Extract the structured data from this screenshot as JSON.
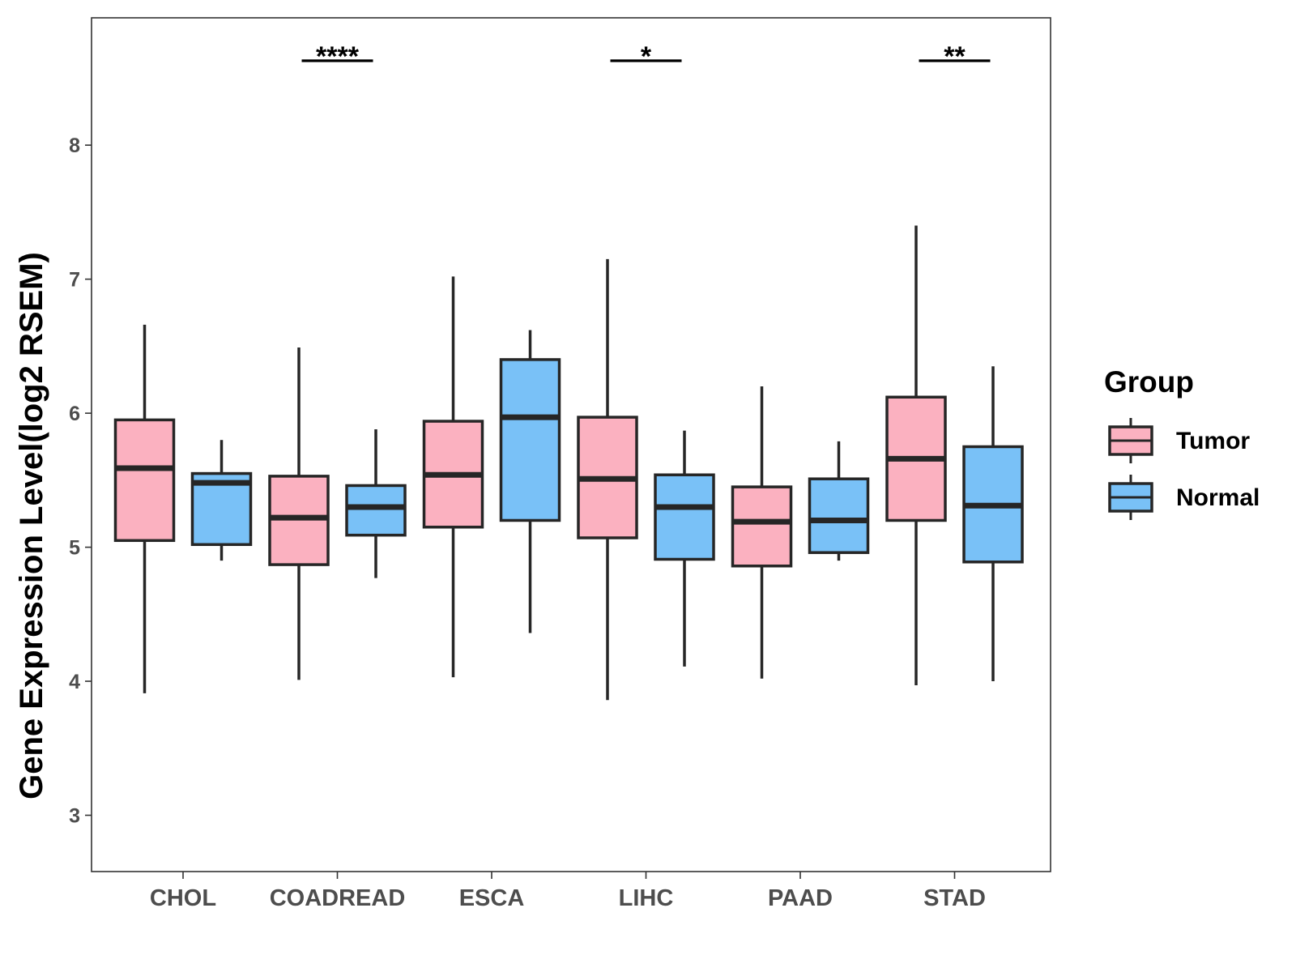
{
  "chart_data": {
    "type": "boxplot",
    "title": "",
    "xlabel": "",
    "ylabel": "Gene Expression Level(log2 RSEM)",
    "ylim": [
      2.58,
      8.95
    ],
    "yticks": [
      3,
      4,
      5,
      6,
      7,
      8
    ],
    "categories": [
      "CHOL",
      "COADREAD",
      "ESCA",
      "LIHC",
      "PAAD",
      "STAD"
    ],
    "legend": {
      "title": "Group",
      "position": "right",
      "entries": [
        {
          "name": "Tumor",
          "color": "#FBB1C0"
        },
        {
          "name": "Normal",
          "color": "#79C1F7"
        }
      ]
    },
    "series": [
      {
        "name": "Tumor",
        "color": "#FBB1C0",
        "boxes": [
          {
            "min": 3.91,
            "q1": 5.05,
            "median": 5.59,
            "q3": 5.95,
            "max": 6.66
          },
          {
            "min": 4.01,
            "q1": 4.87,
            "median": 5.22,
            "q3": 5.53,
            "max": 6.49
          },
          {
            "min": 4.03,
            "q1": 5.15,
            "median": 5.54,
            "q3": 5.94,
            "max": 7.02
          },
          {
            "min": 3.86,
            "q1": 5.07,
            "median": 5.51,
            "q3": 5.97,
            "max": 7.15
          },
          {
            "min": 4.02,
            "q1": 4.86,
            "median": 5.19,
            "q3": 5.45,
            "max": 6.2
          },
          {
            "min": 3.97,
            "q1": 5.2,
            "median": 5.66,
            "q3": 6.12,
            "max": 7.4
          }
        ]
      },
      {
        "name": "Normal",
        "color": "#79C1F7",
        "boxes": [
          {
            "min": 4.9,
            "q1": 5.02,
            "median": 5.48,
            "q3": 5.55,
            "max": 5.8
          },
          {
            "min": 4.77,
            "q1": 5.09,
            "median": 5.3,
            "q3": 5.46,
            "max": 5.88
          },
          {
            "min": 4.36,
            "q1": 5.2,
            "median": 5.97,
            "q3": 6.4,
            "max": 6.62
          },
          {
            "min": 4.11,
            "q1": 4.91,
            "median": 5.3,
            "q3": 5.54,
            "max": 5.87
          },
          {
            "min": 4.9,
            "q1": 4.96,
            "median": 5.2,
            "q3": 5.51,
            "max": 5.79
          },
          {
            "min": 4.0,
            "q1": 4.89,
            "median": 5.31,
            "q3": 5.75,
            "max": 6.35
          }
        ]
      }
    ],
    "annotations": [
      {
        "category": "COADREAD",
        "label": "****"
      },
      {
        "category": "LIHC",
        "label": "*"
      },
      {
        "category": "STAD",
        "label": "**"
      }
    ]
  }
}
